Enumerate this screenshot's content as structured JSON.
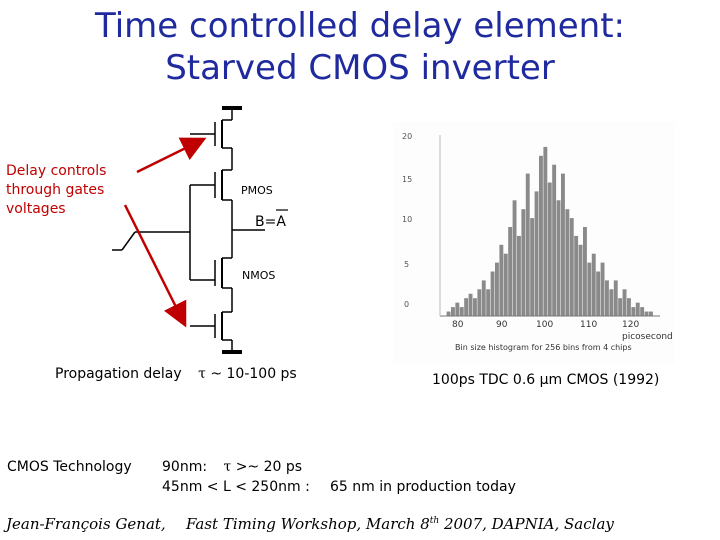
{
  "title_line1": "Time controlled delay element:",
  "title_line2": "Starved CMOS inverter",
  "left_note": "Delay controls through gates voltages",
  "circuit": {
    "pmos_label": "PMOS",
    "output_label": "B=A",
    "nmos_label": "NMOS"
  },
  "propagation": {
    "label": "Propagation delay",
    "symbol": "τ",
    "value": "~ 10-100 ps"
  },
  "histogram": {
    "y_ticks": [
      "20",
      "15",
      "10",
      "5",
      "0"
    ],
    "x_ticks": [
      "80",
      "90",
      "100",
      "110",
      "120"
    ],
    "unit": "picosecond",
    "caption": "Bin size histogram for 256 bins from 4 chips"
  },
  "chart_data": {
    "type": "bar",
    "xlabel": "picosecond",
    "ylim": [
      0,
      20
    ],
    "xlim": [
      76,
      126
    ],
    "x": [
      78,
      79,
      80,
      81,
      82,
      83,
      84,
      85,
      86,
      87,
      88,
      89,
      90,
      91,
      92,
      93,
      94,
      95,
      96,
      97,
      98,
      99,
      100,
      101,
      102,
      103,
      104,
      105,
      106,
      107,
      108,
      109,
      110,
      111,
      112,
      113,
      114,
      115,
      116,
      117,
      118,
      119,
      120,
      121,
      122,
      123,
      124
    ],
    "values": [
      0.5,
      1,
      1.5,
      1,
      2,
      2.5,
      2,
      3,
      4,
      3,
      5,
      6,
      8,
      7,
      10,
      13,
      9,
      12,
      16,
      11,
      14,
      18,
      19,
      15,
      17,
      13,
      16,
      12,
      11,
      9,
      8,
      10,
      6,
      7,
      5,
      6,
      4,
      3,
      4,
      2,
      3,
      2,
      1,
      1.5,
      1,
      0.5,
      0.5
    ]
  },
  "tdc_note": "100ps TDC 0.6 µm CMOS (1992)",
  "technology": {
    "label": "CMOS Technology",
    "line1_node": "90nm:",
    "line1_symbol": "τ",
    "line1_value": ">~ 20 ps",
    "line2": "45nm < L < 250nm :",
    "production": "65 nm in production today"
  },
  "footer": {
    "author": "Jean-François Genat,",
    "event_prefix": "Fast Timing Workshop, March 8",
    "event_sup": "th",
    "event_suffix": " 2007, DAPNIA, Saclay"
  },
  "colors": {
    "title": "#1f2a9e",
    "red": "#c00000",
    "bars": "#8a8a8a"
  }
}
